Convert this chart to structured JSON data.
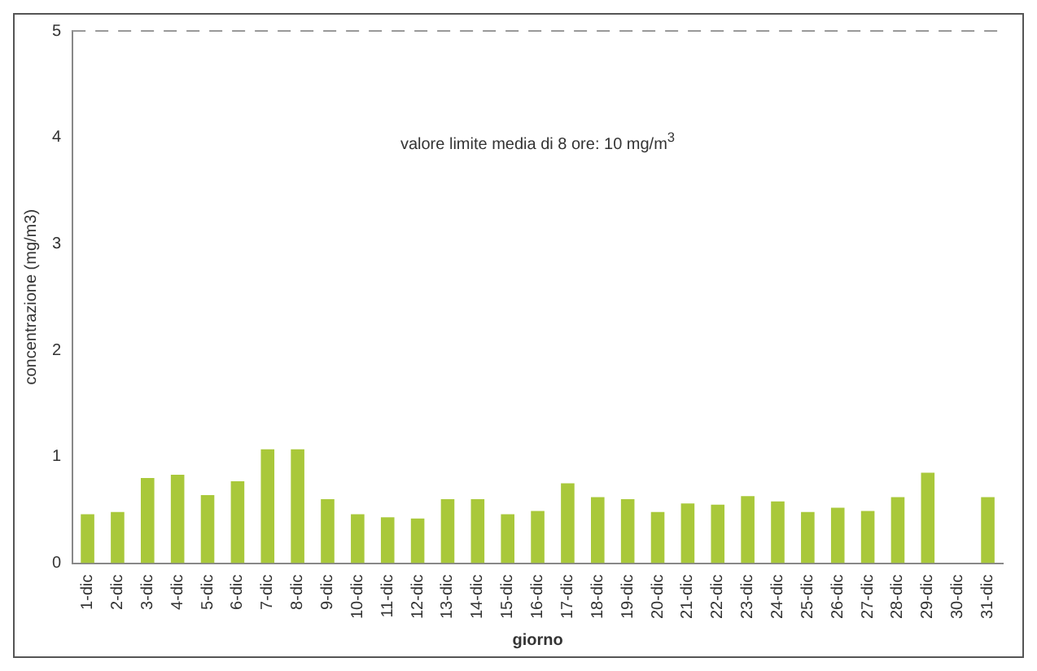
{
  "chart_data": {
    "type": "bar",
    "xlabel": "giorno",
    "ylabel": "concentrazione (mg/m3)",
    "categories": [
      "1-dic",
      "2-dic",
      "3-dic",
      "4-dic",
      "5-dic",
      "6-dic",
      "7-dic",
      "8-dic",
      "9-dic",
      "10-dic",
      "11-dic",
      "12-dic",
      "13-dic",
      "14-dic",
      "15-dic",
      "16-dic",
      "17-dic",
      "18-dic",
      "19-dic",
      "20-dic",
      "21-dic",
      "22-dic",
      "23-dic",
      "24-dic",
      "25-dic",
      "26-dic",
      "27-dic",
      "28-dic",
      "29-dic",
      "30-dic",
      "31-dic"
    ],
    "values": [
      0.46,
      0.48,
      0.8,
      0.83,
      0.64,
      0.77,
      1.07,
      1.07,
      0.6,
      0.46,
      0.43,
      0.42,
      0.6,
      0.6,
      0.46,
      0.49,
      0.75,
      0.62,
      0.6,
      0.48,
      0.56,
      0.55,
      0.63,
      0.58,
      0.48,
      0.52,
      0.49,
      0.62,
      0.85,
      null,
      0.62
    ],
    "color": "#a9c83a",
    "ylim": [
      0,
      5
    ],
    "yticks": [
      0,
      1,
      2,
      3,
      4,
      5
    ],
    "grid": false,
    "legend": false,
    "ref_lines": [
      {
        "axis": "y",
        "value": 5,
        "color": "#999999",
        "line_style": "dashed"
      }
    ],
    "annotations": [
      "valore limite media di 8 ore: 10 mg/m$^{3}$"
    ]
  }
}
